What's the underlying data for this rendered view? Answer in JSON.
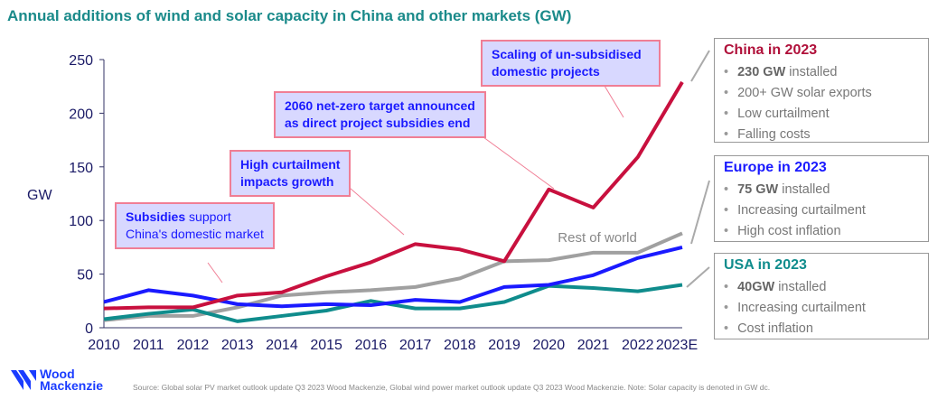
{
  "title": "Annual additions of wind and solar capacity in China and other markets (GW)",
  "chart_data": {
    "type": "line",
    "ylabel": "GW",
    "ylim": [
      0,
      250
    ],
    "yticks": [
      0,
      50,
      100,
      150,
      200,
      250
    ],
    "categories": [
      "2010",
      "2011",
      "2012",
      "2013",
      "2014",
      "2015",
      "2016",
      "2017",
      "2018",
      "2019",
      "2020",
      "2021",
      "2022",
      "2023E"
    ],
    "series": [
      {
        "key": "china",
        "color": "#c8103e",
        "values": [
          18,
          19,
          19,
          30,
          33,
          48,
          61,
          78,
          73,
          62,
          129,
          112,
          159,
          229
        ]
      },
      {
        "key": "europe",
        "color": "#1a1aff",
        "values": [
          24,
          35,
          30,
          22,
          20,
          22,
          21,
          26,
          24,
          38,
          40,
          49,
          65,
          75
        ]
      },
      {
        "key": "usa",
        "color": "#0f8c8c",
        "values": [
          8,
          13,
          17,
          6,
          11,
          16,
          25,
          18,
          18,
          24,
          39,
          37,
          34,
          40
        ]
      },
      {
        "name": "Rest of world",
        "key": "row",
        "color": "#a0a0a0",
        "values": [
          7,
          11,
          11,
          19,
          30,
          33,
          35,
          38,
          46,
          62,
          63,
          70,
          70,
          88
        ]
      }
    ],
    "annotations": {
      "subsidies": {
        "bold": "Subsidies",
        "rest": " support",
        "line2": "China's domestic market"
      },
      "curtailment": {
        "line1": "High curtailment",
        "line2": "impacts growth"
      },
      "netzero": {
        "line1": "2060 net-zero target announced",
        "line2": "as direct project subsidies end"
      },
      "scaling": {
        "line1": "Scaling of un-subsidised",
        "line2": "domestic projects"
      }
    },
    "grid": false
  },
  "panels": {
    "china": {
      "title": "China in 2023",
      "color": "#b0103a",
      "items": [
        {
          "bold": "230 GW",
          "rest": " installed"
        },
        {
          "rest": "200+ GW solar exports"
        },
        {
          "rest": "Low curtailment"
        },
        {
          "rest": "Falling costs"
        }
      ]
    },
    "europe": {
      "title": "Europe in 2023",
      "color": "#1a1aff",
      "items": [
        {
          "bold": "75 GW",
          "rest": " installed"
        },
        {
          "rest": "Increasing curtailment"
        },
        {
          "rest": "High cost inflation"
        }
      ]
    },
    "usa": {
      "title": "USA in 2023",
      "color": "#0f8c8c",
      "items": [
        {
          "bold": "40GW",
          "rest": " installed"
        },
        {
          "rest": "Increasing curtailment"
        },
        {
          "rest": "Cost inflation"
        }
      ]
    }
  },
  "logo": {
    "line1": "Wood",
    "line2": "Mackenzie"
  },
  "source": "Source: Global solar PV market outlook update Q3 2023 Wood Mackenzie, Global wind power market outlook update Q3 2023 Wood Mackenzie. Note: Solar capacity is denoted in GW dc."
}
